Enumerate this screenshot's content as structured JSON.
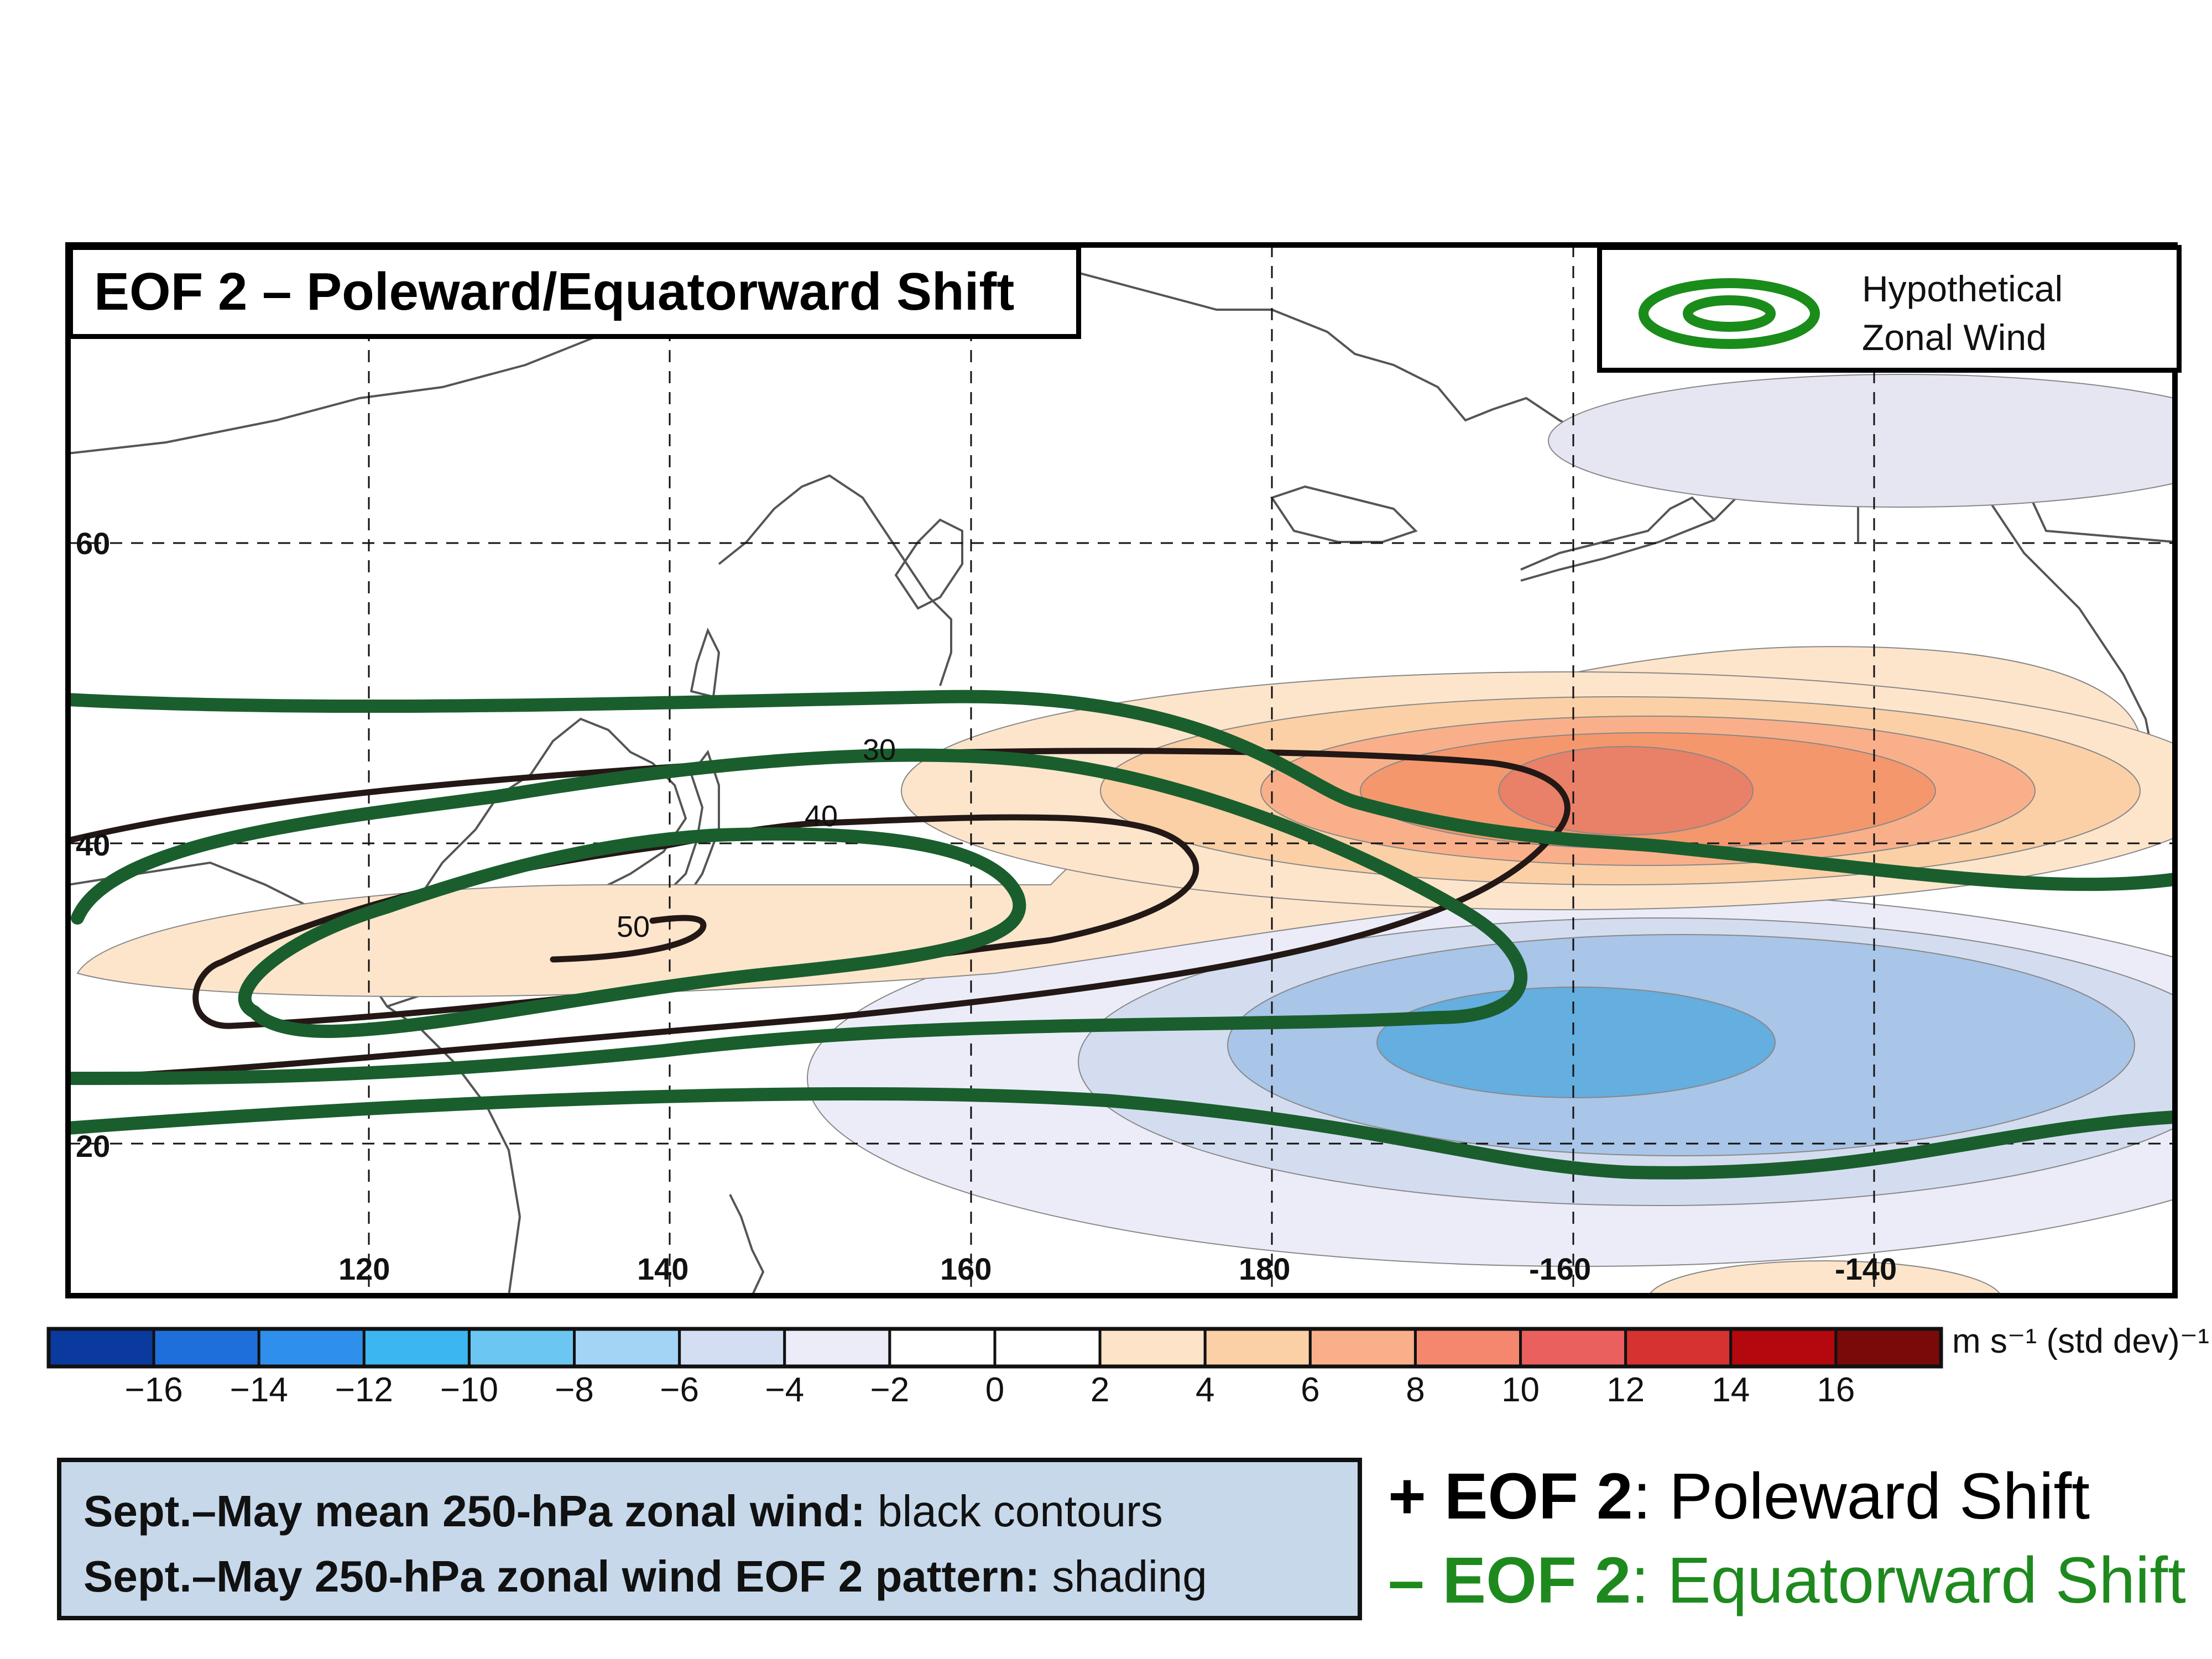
{
  "title": "EOF 2 – Poleward/Equatorward Shift",
  "legend": {
    "line1": "Hypothetical",
    "line2": "Zonal Wind",
    "icon": "green-concentric-ellipses-icon",
    "color": "#1a8c1a"
  },
  "map": {
    "latitudes": [
      "60",
      "40",
      "20"
    ],
    "longitudes": [
      "120",
      "140",
      "160",
      "180",
      "-160",
      "-140"
    ],
    "contour_labels": [
      "30",
      "40",
      "50"
    ]
  },
  "colorbar": {
    "ticks": [
      "−16",
      "−14",
      "−12",
      "−10",
      "−8",
      "−6",
      "−4",
      "−2",
      "0",
      "2",
      "4",
      "6",
      "8",
      "10",
      "12",
      "14",
      "16"
    ],
    "colors": [
      "#0b3a9e",
      "#1f6fdb",
      "#2f8fec",
      "#3bb6f0",
      "#6cc6f2",
      "#a3d3f5",
      "#d4def2",
      "#ececf8",
      "#ffffff",
      "#ffffff",
      "#fde3c8",
      "#fbd0a6",
      "#f9b08a",
      "#f4876e",
      "#e9605e",
      "#d63231",
      "#b3080d",
      "#7a0a0a"
    ],
    "units": "m s⁻¹ (std dev)⁻¹"
  },
  "caption": {
    "line1_bold": "Sept.–May mean 250-hPa zonal wind:",
    "line1_rest": " black contours",
    "line2_bold": "Sept.–May 250-hPa zonal wind EOF 2 pattern:",
    "line2_rest": " shading"
  },
  "eof_legend": {
    "positive_bold": "+ EOF 2",
    "positive_rest": ": Poleward Shift",
    "negative_bold": "– EOF 2",
    "negative_rest": ": Equatorward Shift",
    "positive_color": "#000000",
    "negative_color": "#1e8a1e"
  },
  "colors": {
    "jet_green": "#1a5e2e",
    "contour_black": "#231815"
  }
}
